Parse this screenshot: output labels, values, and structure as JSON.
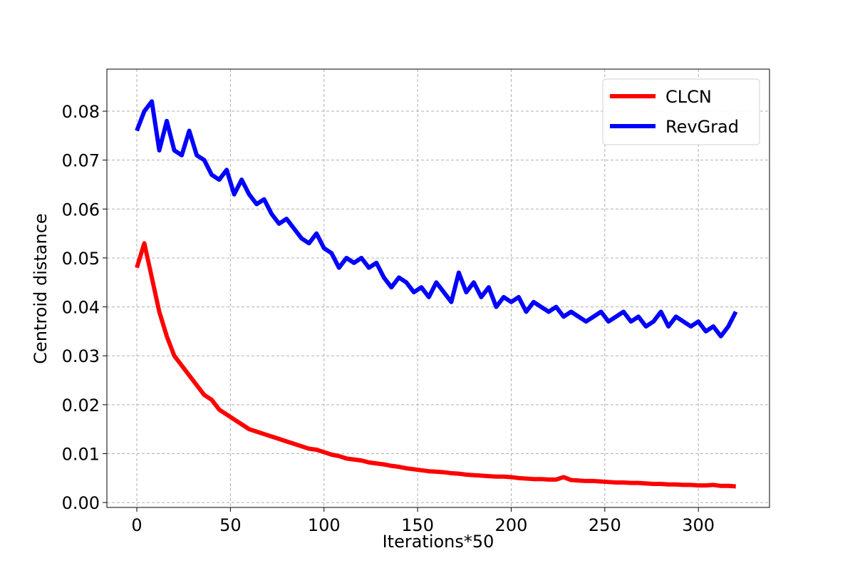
{
  "chart_data": {
    "type": "line",
    "xlabel": "Iterations*50",
    "ylabel": "Centroid distance",
    "x": [
      0,
      4,
      8,
      12,
      16,
      20,
      24,
      28,
      32,
      36,
      40,
      44,
      48,
      52,
      56,
      60,
      64,
      68,
      72,
      76,
      80,
      84,
      88,
      92,
      96,
      100,
      104,
      108,
      112,
      116,
      120,
      124,
      128,
      132,
      136,
      140,
      144,
      148,
      152,
      156,
      160,
      164,
      168,
      172,
      176,
      180,
      184,
      188,
      192,
      196,
      200,
      204,
      208,
      212,
      216,
      220,
      224,
      228,
      232,
      236,
      240,
      244,
      248,
      252,
      256,
      260,
      264,
      268,
      272,
      276,
      280,
      284,
      288,
      292,
      296,
      300,
      304,
      308,
      312,
      316,
      320
    ],
    "series": [
      {
        "name": "CLCN",
        "color": "#ff0000",
        "values": [
          0.048,
          0.053,
          0.046,
          0.039,
          0.034,
          0.03,
          0.028,
          0.026,
          0.024,
          0.022,
          0.021,
          0.019,
          0.018,
          0.017,
          0.016,
          0.015,
          0.0145,
          0.014,
          0.0135,
          0.013,
          0.0125,
          0.012,
          0.0115,
          0.011,
          0.0108,
          0.0103,
          0.0098,
          0.0095,
          0.009,
          0.0088,
          0.0086,
          0.0082,
          0.008,
          0.0078,
          0.0075,
          0.0073,
          0.007,
          0.0068,
          0.0066,
          0.0064,
          0.0063,
          0.0062,
          0.006,
          0.0059,
          0.0057,
          0.0056,
          0.0055,
          0.0054,
          0.0053,
          0.0053,
          0.0052,
          0.005,
          0.0049,
          0.0048,
          0.0048,
          0.0047,
          0.0047,
          0.0052,
          0.0046,
          0.0045,
          0.0044,
          0.0044,
          0.0043,
          0.0042,
          0.0041,
          0.0041,
          0.004,
          0.004,
          0.0039,
          0.0038,
          0.0038,
          0.0037,
          0.0037,
          0.0036,
          0.0036,
          0.0035,
          0.0035,
          0.0036,
          0.0034,
          0.0034,
          0.0033
        ]
      },
      {
        "name": "RevGrad",
        "color": "#0000ff",
        "values": [
          0.076,
          0.08,
          0.082,
          0.072,
          0.078,
          0.072,
          0.071,
          0.076,
          0.071,
          0.07,
          0.067,
          0.066,
          0.068,
          0.063,
          0.066,
          0.063,
          0.061,
          0.062,
          0.059,
          0.057,
          0.058,
          0.056,
          0.054,
          0.053,
          0.055,
          0.052,
          0.051,
          0.048,
          0.05,
          0.049,
          0.05,
          0.048,
          0.049,
          0.046,
          0.044,
          0.046,
          0.045,
          0.043,
          0.044,
          0.042,
          0.045,
          0.043,
          0.041,
          0.047,
          0.043,
          0.045,
          0.042,
          0.044,
          0.04,
          0.042,
          0.041,
          0.042,
          0.039,
          0.041,
          0.04,
          0.039,
          0.04,
          0.038,
          0.039,
          0.038,
          0.037,
          0.038,
          0.039,
          0.037,
          0.038,
          0.039,
          0.037,
          0.038,
          0.036,
          0.037,
          0.039,
          0.036,
          0.038,
          0.037,
          0.036,
          0.037,
          0.035,
          0.036,
          0.034,
          0.036,
          0.039
        ]
      }
    ],
    "xlim": [
      -16,
      338
    ],
    "ylim": [
      -0.001,
      0.0886
    ],
    "xticks": [
      0,
      50,
      100,
      150,
      200,
      250,
      300
    ],
    "yticks": [
      {
        "value": 0,
        "label": "0.00"
      },
      0.01,
      0.02,
      0.03,
      0.04,
      0.05,
      0.06,
      0.07,
      0.08
    ],
    "grid": true,
    "legend": "upper right"
  }
}
